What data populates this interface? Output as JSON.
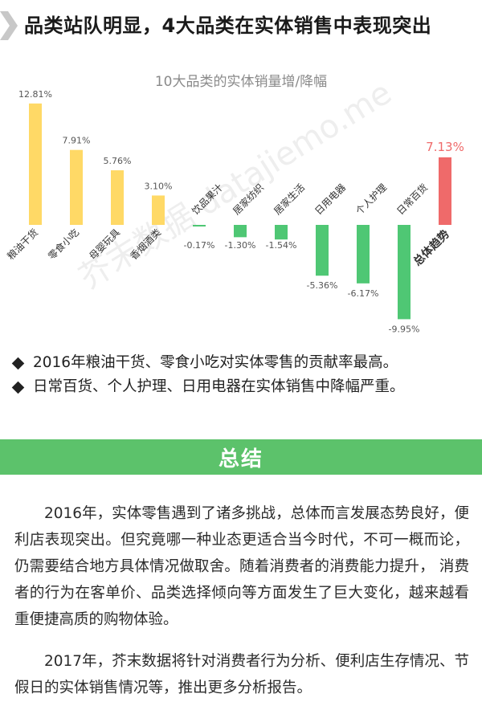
{
  "header": {
    "title": "品类站队明显，4大品类在实体销售中表现突出",
    "chevron_icon": "chevron-right-icon"
  },
  "chart_data": {
    "type": "bar",
    "title": "10大品类的实体销量增/降幅",
    "categories": [
      "粮油干货",
      "零食小吃",
      "母婴玩具",
      "香烟酒类",
      "饮品果汁",
      "居家纺织",
      "居家生活",
      "日用电器",
      "个人护理",
      "日常百货",
      "总体趋势"
    ],
    "values": [
      12.81,
      7.91,
      5.76,
      3.1,
      -0.17,
      -1.3,
      -1.54,
      -5.36,
      -6.17,
      -9.95,
      7.13
    ],
    "value_labels": [
      "12.81%",
      "7.91%",
      "5.76%",
      "3.10%",
      "-0.17%",
      "-1.30%",
      "-1.54%",
      "-5.36%",
      "-6.17%",
      "-9.95%",
      "7.13%"
    ],
    "unit": "%",
    "colors": {
      "positive": "#ffd966",
      "negative": "#4fc774",
      "total": "#ef6a6a",
      "total_label": "#ef6a6a"
    },
    "ylim": [
      -10.5,
      14
    ],
    "grid": false,
    "legend": "none",
    "watermark": "芥末数据 datajiemo.me"
  },
  "bullets": [
    "2016年粮油干货、零食小吃对实体零售的贡献率最高。",
    "日常百货、个人护理、日用电器在实体销售中降幅严重。"
  ],
  "bullet_icon": "diamond-icon",
  "summary": {
    "heading": "总结",
    "paragraphs": [
      "2016年，实体零售遇到了诸多挑战，总体而言发展态势良好，便利店表现突出。但究竟哪一种业态更适合当今时代，不可一概而论，仍需要结合地方具体情况做取舍。随着消费者的消费能力提升， 消费者的行为在客单价、品类选择倾向等方面发生了巨大变化，越来越看重便捷高质的购物体验。",
      "2017年，芥末数据将针对消费者行为分析、便利店生存情况、节假日的实体销售情况等，推出更多分析报告。"
    ]
  }
}
